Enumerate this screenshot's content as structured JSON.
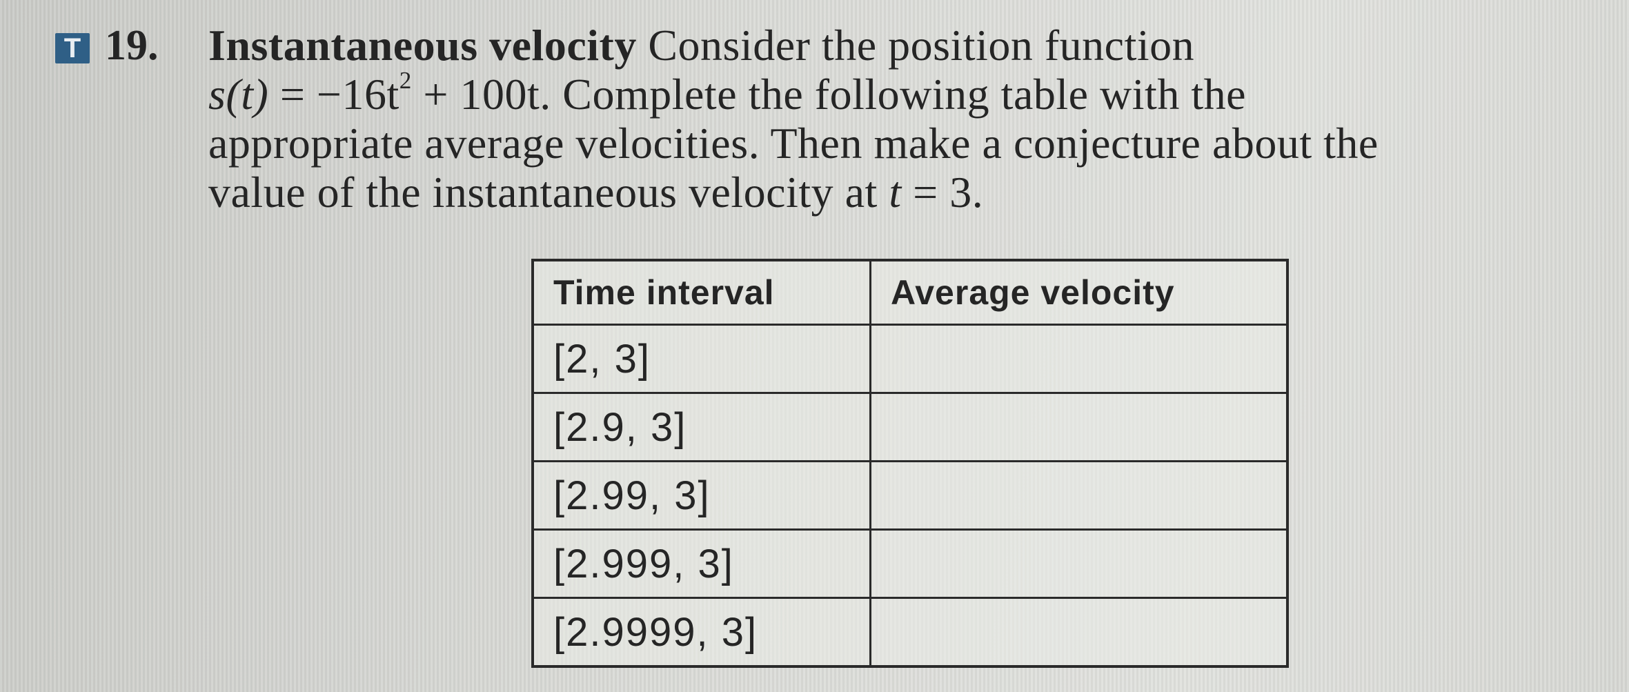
{
  "problem": {
    "badge": "T",
    "number": "19.",
    "title": "Instantaneous velocity",
    "line1_rest": "Consider the position function",
    "line2_func_lhs": "s(t)",
    "line2_func_mid": "= −16t",
    "line2_exp": "2",
    "line2_func_rhs": "+ 100t.",
    "line2_rest": "Complete the following table with the",
    "line3": "appropriate average velocities. Then make a conjecture about the",
    "line4_start": "value of the instantaneous velocity at",
    "line4_var": "t",
    "line4_end": "= 3."
  },
  "table": {
    "headers": [
      "Time interval",
      "Average velocity"
    ],
    "rows": [
      {
        "interval": "[2, 3]",
        "velocity": ""
      },
      {
        "interval": "[2.9, 3]",
        "velocity": ""
      },
      {
        "interval": "[2.99, 3]",
        "velocity": ""
      },
      {
        "interval": "[2.999, 3]",
        "velocity": ""
      },
      {
        "interval": "[2.9999, 3]",
        "velocity": ""
      }
    ]
  }
}
